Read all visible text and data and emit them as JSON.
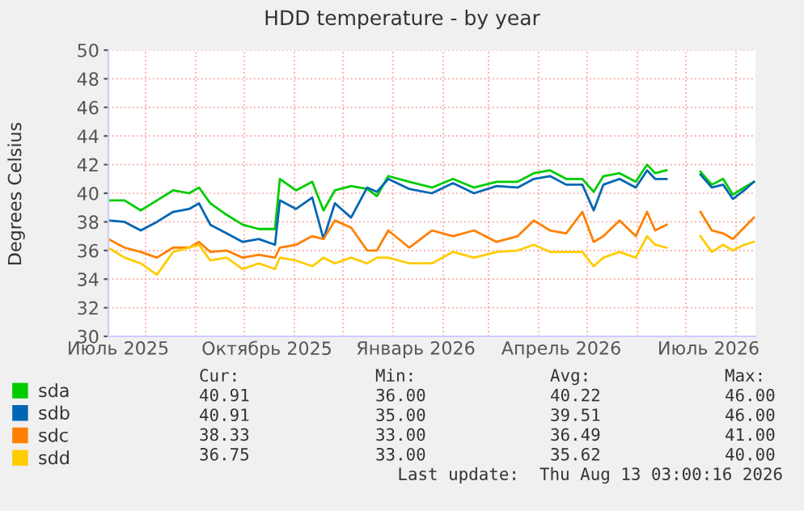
{
  "chart_data": {
    "type": "line",
    "title": "HDD temperature - by year",
    "ylabel": "Degrees Celsius",
    "x": [
      "2025-07-09",
      "2025-07-19",
      "2025-07-29",
      "2025-08-08",
      "2025-08-18",
      "2025-08-28",
      "2025-09-03",
      "2025-09-10",
      "2025-09-20",
      "2025-09-30",
      "2025-10-10",
      "2025-10-20",
      "2025-10-23",
      "2025-11-02",
      "2025-11-12",
      "2025-11-19",
      "2025-11-26",
      "2025-12-06",
      "2025-12-16",
      "2025-12-22",
      "2025-12-29",
      "2026-01-11",
      "2026-01-25",
      "2026-02-07",
      "2026-02-20",
      "2026-03-06",
      "2026-03-19",
      "2026-03-29",
      "2026-04-08",
      "2026-04-18",
      "2026-04-28",
      "2026-05-05",
      "2026-05-11",
      "2026-05-21",
      "2026-05-31",
      "2026-06-07",
      "2026-06-12",
      "2026-06-19",
      "2026-06-27",
      "2026-07-10",
      "2026-07-17",
      "2026-07-24",
      "2026-07-30",
      "2026-08-06",
      "2026-08-12"
    ],
    "series": [
      {
        "name": "sda",
        "color": "#00cc00",
        "values": [
          39.5,
          39.5,
          38.8,
          39.5,
          40.2,
          40.0,
          40.4,
          39.3,
          38.5,
          37.8,
          37.5,
          37.5,
          41.0,
          40.2,
          40.8,
          38.8,
          40.2,
          40.5,
          40.3,
          39.8,
          41.2,
          40.8,
          40.4,
          41.0,
          40.4,
          40.8,
          40.8,
          41.4,
          41.6,
          41.0,
          41.0,
          40.1,
          41.2,
          41.4,
          40.8,
          42.0,
          41.4,
          41.6,
          null,
          41.5,
          40.6,
          41.0,
          39.9,
          40.4,
          40.8
        ]
      },
      {
        "name": "sdb",
        "color": "#0066b3",
        "values": [
          38.1,
          38.0,
          37.4,
          38.0,
          38.7,
          38.9,
          39.3,
          37.8,
          37.2,
          36.6,
          36.8,
          36.4,
          39.5,
          38.9,
          39.7,
          36.8,
          39.3,
          38.3,
          40.4,
          40.1,
          41.0,
          40.3,
          40.0,
          40.7,
          40.0,
          40.5,
          40.4,
          41.0,
          41.2,
          40.6,
          40.6,
          38.8,
          40.6,
          41.0,
          40.4,
          41.6,
          41.0,
          41.0,
          null,
          41.3,
          40.4,
          40.6,
          39.6,
          40.2,
          40.8
        ]
      },
      {
        "name": "sdc",
        "color": "#ff8000",
        "values": [
          36.8,
          36.2,
          35.9,
          35.5,
          36.2,
          36.2,
          36.6,
          35.9,
          36.0,
          35.5,
          35.7,
          35.5,
          36.2,
          36.4,
          37.0,
          36.8,
          38.1,
          37.6,
          36.0,
          36.0,
          37.4,
          36.2,
          37.4,
          37.0,
          37.4,
          36.6,
          37.0,
          38.1,
          37.4,
          37.2,
          38.7,
          36.6,
          37.0,
          38.1,
          37.0,
          38.7,
          37.4,
          37.8,
          null,
          38.7,
          37.4,
          37.2,
          36.8,
          37.6,
          38.3
        ]
      },
      {
        "name": "sdd",
        "color": "#ffcc00",
        "values": [
          36.2,
          35.5,
          35.1,
          34.3,
          35.9,
          36.2,
          36.4,
          35.3,
          35.5,
          34.7,
          35.1,
          34.7,
          35.5,
          35.3,
          34.9,
          35.5,
          35.1,
          35.5,
          35.1,
          35.5,
          35.5,
          35.1,
          35.1,
          35.9,
          35.5,
          35.9,
          36.0,
          36.4,
          35.9,
          35.9,
          35.9,
          34.9,
          35.5,
          35.9,
          35.5,
          37.0,
          36.4,
          36.2,
          null,
          37.0,
          35.9,
          36.4,
          36.0,
          36.4,
          36.6
        ]
      }
    ],
    "xlim": [
      "2025-07-09",
      "2026-08-13"
    ],
    "xticks": [
      {
        "value": "2025-07-15",
        "label": "Июль 2025"
      },
      {
        "value": "2025-08-01",
        "label": null
      },
      {
        "value": "2025-09-01",
        "label": null
      },
      {
        "value": "2025-10-01",
        "label": null
      },
      {
        "value": "2025-10-15",
        "label": "Октябрь 2025"
      },
      {
        "value": "2025-11-01",
        "label": null
      },
      {
        "value": "2025-12-01",
        "label": null
      },
      {
        "value": "2026-01-01",
        "label": null
      },
      {
        "value": "2026-01-15",
        "label": "Январь 2026"
      },
      {
        "value": "2026-02-01",
        "label": null
      },
      {
        "value": "2026-03-01",
        "label": null
      },
      {
        "value": "2026-04-01",
        "label": null
      },
      {
        "value": "2026-04-15",
        "label": "Апрель 2026"
      },
      {
        "value": "2026-05-01",
        "label": null
      },
      {
        "value": "2026-06-01",
        "label": null
      },
      {
        "value": "2026-07-01",
        "label": null
      },
      {
        "value": "2026-07-15",
        "label": "Июль 2026"
      },
      {
        "value": "2026-08-01",
        "label": null
      }
    ],
    "ylim": [
      30,
      50
    ],
    "yticks": [
      30,
      32,
      34,
      36,
      38,
      40,
      42,
      44,
      46,
      48,
      50
    ],
    "grid": true,
    "legend": "bottom left",
    "marker": "none",
    "line_style": "solid",
    "annotations": [
      "Cur:",
      "Min:",
      "Avg:",
      "Max:",
      "40.91",
      "36.00",
      "40.22",
      "46.00",
      "40.91",
      "35.00",
      "39.51",
      "46.00",
      "38.33",
      "33.00",
      "36.49",
      "41.00",
      "36.75",
      "33.00",
      "35.62",
      "40.00",
      "Last update:  Thu Aug 13 03:00:16 2026"
    ]
  }
}
